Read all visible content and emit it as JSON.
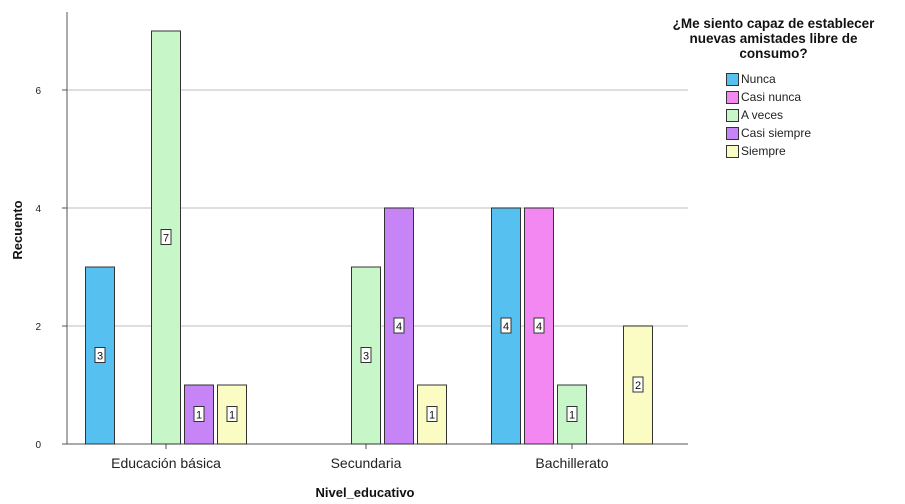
{
  "chart_data": {
    "type": "bar",
    "title": "¿Me siento capaz de establecer\nnuevas amistades libre de\nconsumo?",
    "xlabel": "Nivel_educativo",
    "ylabel": "Recuento",
    "categories": [
      "Educación básica",
      "Secundaria",
      "Bachillerato"
    ],
    "ylim": [
      0,
      7.3
    ],
    "yticks": [
      0,
      2,
      4,
      6
    ],
    "grid": true,
    "legend_position": "top-right",
    "series": [
      {
        "name": "Nunca",
        "color": "#56c1f0",
        "values": [
          3,
          null,
          4
        ]
      },
      {
        "name": "Casi nunca",
        "color": "#f488f2",
        "values": [
          null,
          null,
          4
        ]
      },
      {
        "name": "A veces",
        "color": "#c7f7c8",
        "values": [
          7,
          3,
          1
        ]
      },
      {
        "name": "Casi siempre",
        "color": "#c784f6",
        "values": [
          1,
          4,
          null
        ]
      },
      {
        "name": "Siempre",
        "color": "#fbfbc4",
        "values": [
          1,
          1,
          2
        ]
      }
    ]
  }
}
